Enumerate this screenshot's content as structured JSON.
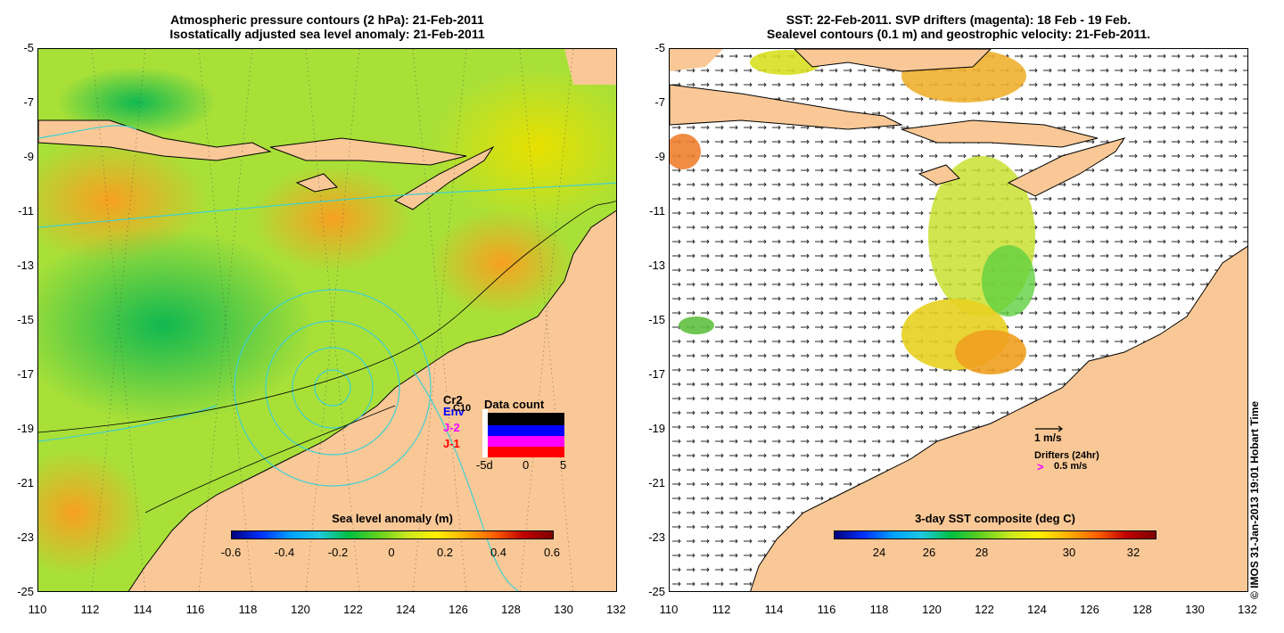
{
  "left_panel": {
    "title_line1": "Atmospheric pressure contours (2 hPa): 21-Feb-2011",
    "title_line2": "Isostatically adjusted sea level anomaly: 21-Feb-2011",
    "colorbar_title": "Sea level anomaly (m)",
    "colorbar_ticks": [
      "-0.6",
      "-0.4",
      "-0.2",
      "0",
      "0.2",
      "0.4",
      "0.6"
    ],
    "inset": {
      "title": "Data count",
      "legend": [
        "Cr2",
        "Env",
        "J-2",
        "J-1"
      ],
      "legend_colors": [
        "#000000",
        "#0000ff",
        "#ff00ff",
        "#ff0000"
      ],
      "extra_label": "C10",
      "x_ticks": [
        "-5d",
        "0",
        "5"
      ]
    }
  },
  "right_panel": {
    "title_line1": "SST: 22-Feb-2011. SVP drifters (magenta): 18 Feb - 19 Feb.",
    "title_line2": "Sealevel contours (0.1 m) and geostrophic velocity: 21-Feb-2011.",
    "colorbar_title": "3-day SST composite (deg C)",
    "colorbar_ticks": [
      "24",
      "26",
      "28",
      "30",
      "32"
    ],
    "velocity_scale_label": "1 m/s",
    "drifters_label": "Drifters (24hr)",
    "drifters_symbol": ">",
    "drifters_speed": "0.5 m/s"
  },
  "axes": {
    "y_ticks": [
      "-5",
      "-7",
      "-9",
      "-11",
      "-13",
      "-15",
      "-17",
      "-19",
      "-21",
      "-23",
      "-25"
    ],
    "x_ticks": [
      "110",
      "112",
      "114",
      "116",
      "118",
      "120",
      "122",
      "124",
      "126",
      "128",
      "130",
      "132"
    ]
  },
  "credit": "© IMOS 31-Jan-2013 19:01 Hobart Time",
  "colors": {
    "land": "#fac896",
    "ocean_green": "#a0e030",
    "ocean_yellow": "#e0e800",
    "ocean_orange": "#f8b040",
    "deep_green": "#20c040",
    "contour_cyan": "#40d0d0"
  }
}
